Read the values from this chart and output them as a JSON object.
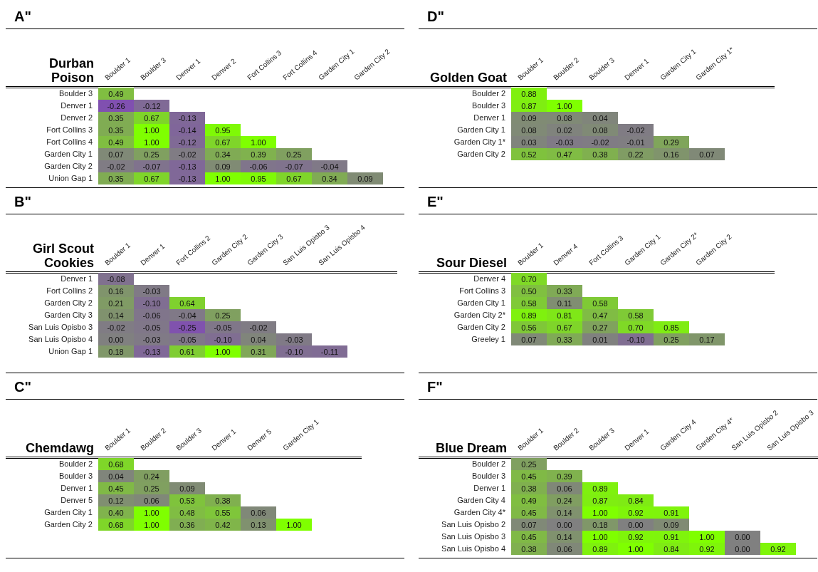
{
  "chart_data": [
    {
      "type": "heatmap",
      "title": "Durban Poison",
      "annotations": [
        "A\""
      ],
      "data_labels": true,
      "categories": [
        "Boulder 1",
        "Boulder 3",
        "Denver 1",
        "Denver 2",
        "Fort Collins 3",
        "Fort Collins 4",
        "Garden City 1",
        "Garden City 2"
      ],
      "y_categories": [
        "Boulder 3",
        "Denver 1",
        "Denver 2",
        "Fort Collins 3",
        "Fort Collins 4",
        "Garden City 1",
        "Garden City 2",
        "Union Gap 1"
      ],
      "cells": [
        [
          0.49,
          null,
          null,
          null,
          null,
          null,
          null,
          null
        ],
        [
          -0.26,
          -0.12,
          null,
          null,
          null,
          null,
          null,
          null
        ],
        [
          0.35,
          0.67,
          -0.13,
          null,
          null,
          null,
          null,
          null
        ],
        [
          0.35,
          1.0,
          -0.14,
          0.95,
          null,
          null,
          null,
          null
        ],
        [
          0.49,
          1.0,
          -0.12,
          0.67,
          1.0,
          null,
          null,
          null
        ],
        [
          0.07,
          0.25,
          -0.02,
          0.34,
          0.39,
          0.25,
          null,
          null
        ],
        [
          -0.02,
          -0.07,
          -0.13,
          0.09,
          -0.06,
          -0.07,
          -0.04,
          null
        ],
        [
          0.35,
          0.67,
          -0.13,
          1.0,
          0.95,
          0.67,
          0.34,
          0.09
        ]
      ],
      "cell_labels": [
        [
          "0.49",
          null,
          null,
          null,
          null,
          null,
          null,
          null
        ],
        [
          "-0.26",
          "-0.12",
          null,
          null,
          null,
          null,
          null,
          null
        ],
        [
          "0.35",
          "0.67",
          "-0.13",
          null,
          null,
          null,
          null,
          null
        ],
        [
          "0.35",
          "1.00",
          "-0.14",
          "0.95",
          null,
          null,
          null,
          null
        ],
        [
          "0.49",
          "1.00",
          "-0.12",
          "0.67",
          "1.00",
          null,
          null,
          null
        ],
        [
          "0.07",
          "0.25",
          "-0.02",
          "0.34",
          "0.39",
          "0.25",
          null,
          null
        ],
        [
          "-0.02",
          "-0.07",
          "-0.13",
          "0.09",
          "-0.06",
          "-0.07",
          "-0.04",
          null
        ],
        [
          "0.35",
          "0.67",
          "-0.13",
          "1.00",
          "0.95",
          "0.67",
          "0.34",
          "0.09"
        ]
      ]
    },
    {
      "type": "heatmap",
      "title": "Girl Scout Cookies",
      "annotations": [
        "B\""
      ],
      "data_labels": true,
      "categories": [
        "Boulder 1",
        "Denver 1",
        "Fort Collins 2",
        "Garden City 2",
        "Garden City 3",
        "San Luis Opisbo 3",
        "San Luis Opisbo 4"
      ],
      "y_categories": [
        "Denver 1",
        "Fort Collins 2",
        "Garden City 2",
        "Garden City 3",
        "San Luis Opisbo 3",
        "San Luis Opisbo 4",
        "Union Gap 1"
      ],
      "cells": [
        [
          -0.08,
          null,
          null,
          null,
          null,
          null,
          null
        ],
        [
          0.16,
          -0.03,
          null,
          null,
          null,
          null,
          null
        ],
        [
          0.21,
          -0.1,
          0.64,
          null,
          null,
          null,
          null
        ],
        [
          0.14,
          -0.06,
          -0.04,
          0.25,
          null,
          null,
          null
        ],
        [
          -0.02,
          -0.05,
          -0.25,
          -0.05,
          -0.02,
          null,
          null
        ],
        [
          0.0,
          -0.03,
          -0.05,
          -0.1,
          0.04,
          -0.03,
          null
        ],
        [
          0.18,
          -0.13,
          0.61,
          1.0,
          0.31,
          -0.1,
          -0.11
        ]
      ],
      "cell_labels": [
        [
          "-0.08",
          null,
          null,
          null,
          null,
          null,
          null
        ],
        [
          "0.16",
          "-0.03",
          null,
          null,
          null,
          null,
          null
        ],
        [
          "0.21",
          "-0.10",
          "0.64",
          null,
          null,
          null,
          null
        ],
        [
          "0.14",
          "-0.06",
          "-0.04",
          "0.25",
          null,
          null,
          null
        ],
        [
          "-0.02",
          "-0.05",
          "-0.25",
          "-0.05",
          "-0.02",
          null,
          null
        ],
        [
          "0.00",
          "-0.03",
          "-0.05",
          "-0.10",
          "0.04",
          "-0.03",
          null
        ],
        [
          "0.18",
          "-0.13",
          "0.61",
          "1.00",
          "0.31",
          "-0.10",
          "-0.11"
        ]
      ]
    },
    {
      "type": "heatmap",
      "title": "Chemdawg",
      "annotations": [
        "C\""
      ],
      "data_labels": true,
      "categories": [
        "Boulder 1",
        "Boulder 2",
        "Boulder 3",
        "Denver 1",
        "Denver 5",
        "Garden City 1"
      ],
      "y_categories": [
        "Boulder 2",
        "Boulder 3",
        "Denver 1",
        "Denver 5",
        "Garden City 1",
        "Garden City 2"
      ],
      "cells": [
        [
          0.68,
          null,
          null,
          null,
          null,
          null
        ],
        [
          0.04,
          0.24,
          null,
          null,
          null,
          null
        ],
        [
          0.45,
          0.25,
          0.09,
          null,
          null,
          null
        ],
        [
          0.12,
          0.06,
          0.53,
          0.38,
          null,
          null
        ],
        [
          0.4,
          1.0,
          0.48,
          0.55,
          0.06,
          null
        ],
        [
          0.68,
          1.0,
          0.36,
          0.42,
          0.13,
          1.0
        ]
      ],
      "cell_labels": [
        [
          "0.68",
          null,
          null,
          null,
          null,
          null
        ],
        [
          "0.04",
          "0.24",
          null,
          null,
          null,
          null
        ],
        [
          "0.45",
          "0.25",
          "0.09",
          null,
          null,
          null
        ],
        [
          "0.12",
          "0.06",
          "0.53",
          "0.38",
          null,
          null
        ],
        [
          "0.40",
          "1.00",
          "0.48",
          "0.55",
          "0.06",
          null
        ],
        [
          "0.68",
          "1.00",
          "0.36",
          "0.42",
          "0.13",
          "1.00"
        ]
      ]
    },
    {
      "type": "heatmap",
      "title": "Golden Goat",
      "annotations": [
        "D\""
      ],
      "data_labels": true,
      "categories": [
        "Boulder 1",
        "Boulder 2",
        "Boulder 3",
        "Denver 1",
        "Garden City 1",
        "Garden City 1*"
      ],
      "y_categories": [
        "Boulder 2",
        "Boulder 3",
        "Denver 1",
        "Garden City 1",
        "Garden City 1*",
        "Garden City 2"
      ],
      "cells": [
        [
          0.88,
          null,
          null,
          null,
          null,
          null
        ],
        [
          0.87,
          1.0,
          null,
          null,
          null,
          null
        ],
        [
          0.09,
          0.08,
          0.04,
          null,
          null,
          null
        ],
        [
          0.08,
          0.02,
          0.08,
          -0.02,
          null,
          null
        ],
        [
          0.03,
          -0.03,
          -0.02,
          -0.01,
          0.29,
          null
        ],
        [
          0.52,
          0.47,
          0.38,
          0.22,
          0.16,
          0.07
        ]
      ],
      "cell_labels": [
        [
          "0.88",
          null,
          null,
          null,
          null,
          null
        ],
        [
          "0.87",
          "1.00",
          null,
          null,
          null,
          null
        ],
        [
          "0.09",
          "0.08",
          "0.04",
          null,
          null,
          null
        ],
        [
          "0.08",
          "0.02",
          "0.08",
          "-0.02",
          null,
          null
        ],
        [
          "0.03",
          "-0.03",
          "-0.02",
          "-0.01",
          "0.29",
          null
        ],
        [
          "0.52",
          "0.47",
          "0.38",
          "0.22",
          "0.16",
          "0.07"
        ]
      ]
    },
    {
      "type": "heatmap",
      "title": "Sour Diesel",
      "annotations": [
        "E\""
      ],
      "data_labels": true,
      "categories": [
        "Boulder 1",
        "Denver 4",
        "Fort Collins 3",
        "Garden City 1",
        "Garden City 2*",
        "Garden City 2"
      ],
      "y_categories": [
        "Denver 4",
        "Fort Collins 3",
        "Garden City 1",
        "Garden City 2*",
        "Garden City 2",
        "Greeley 1"
      ],
      "cells": [
        [
          0.7,
          null,
          null,
          null,
          null,
          null
        ],
        [
          0.5,
          0.33,
          null,
          null,
          null,
          null
        ],
        [
          0.58,
          0.11,
          0.58,
          null,
          null,
          null
        ],
        [
          0.89,
          0.81,
          0.47,
          0.58,
          null,
          null
        ],
        [
          0.56,
          0.67,
          0.27,
          0.7,
          0.85,
          null
        ],
        [
          0.07,
          0.33,
          0.01,
          -0.1,
          0.25,
          0.17
        ]
      ],
      "cell_labels": [
        [
          "0.70",
          null,
          null,
          null,
          null,
          null
        ],
        [
          "0.50",
          "0.33",
          null,
          null,
          null,
          null
        ],
        [
          "0.58",
          "0.11",
          "0.58",
          null,
          null,
          null
        ],
        [
          "0.89",
          "0.81",
          "0.47",
          "0.58",
          null,
          null
        ],
        [
          "0.56",
          "0.67",
          "0.27",
          "0.70",
          "0.85",
          null
        ],
        [
          "0.07",
          "0.33",
          "0.01",
          "-0.10",
          "0.25",
          "0.17"
        ]
      ]
    },
    {
      "type": "heatmap",
      "title": "Blue Dream",
      "annotations": [
        "F\""
      ],
      "data_labels": true,
      "categories": [
        "Boulder 1",
        "Boulder 2",
        "Boulder 3",
        "Denver 1",
        "Garden City 4",
        "Garden City 4*",
        "San Luis Opisbo 2",
        "San Luis Opisbo 3"
      ],
      "y_categories": [
        "Boulder 2",
        "Boulder 3",
        "Denver 1",
        "Garden City 4",
        "Garden City 4*",
        "San Luis Opisbo 2",
        "San Luis Opisbo 3",
        "San Luis Opisbo 4"
      ],
      "cells": [
        [
          0.25,
          null,
          null,
          null,
          null,
          null,
          null,
          null
        ],
        [
          0.45,
          0.39,
          null,
          null,
          null,
          null,
          null,
          null
        ],
        [
          0.38,
          0.06,
          0.89,
          null,
          null,
          null,
          null,
          null
        ],
        [
          0.49,
          0.24,
          0.87,
          0.84,
          null,
          null,
          null,
          null
        ],
        [
          0.45,
          0.14,
          1.0,
          0.92,
          0.91,
          null,
          null,
          null
        ],
        [
          0.07,
          0.0,
          0.18,
          0.0,
          0.09,
          null,
          null,
          null
        ],
        [
          0.45,
          0.14,
          1.0,
          0.92,
          0.91,
          1.0,
          0.0,
          null
        ],
        [
          0.38,
          0.06,
          0.89,
          1.0,
          0.84,
          0.92,
          0.0,
          0.92
        ]
      ],
      "cell_labels": [
        [
          "0.25",
          null,
          null,
          null,
          null,
          null,
          null,
          null
        ],
        [
          "0.45",
          "0.39",
          null,
          null,
          null,
          null,
          null,
          null
        ],
        [
          "0.38",
          "0.06",
          "0.89",
          null,
          null,
          null,
          null,
          null
        ],
        [
          "0.49",
          "0.24",
          "0.87",
          "0.84",
          null,
          null,
          null,
          null
        ],
        [
          "0.45",
          "0.14",
          "1.00",
          "0.92",
          "0.91",
          null,
          null,
          null
        ],
        [
          "0.07",
          "0.00",
          "0.18",
          "0.00",
          "0.09",
          null,
          null,
          null
        ],
        [
          "0.45",
          "0.14",
          "1.00",
          "0.92",
          "0.91",
          "1.00",
          "0.00",
          null
        ],
        [
          "0.38",
          "0.06",
          "0.89",
          "1.00",
          "0.84",
          "0.92",
          "0.00",
          "0.92"
        ]
      ]
    }
  ]
}
